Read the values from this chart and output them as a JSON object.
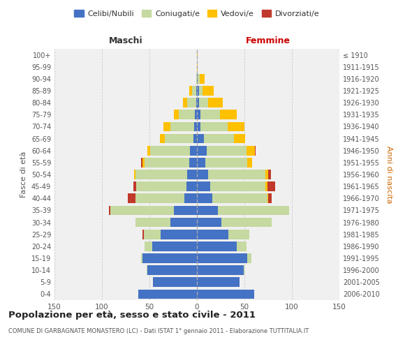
{
  "age_groups": [
    "0-4",
    "5-9",
    "10-14",
    "15-19",
    "20-24",
    "25-29",
    "30-34",
    "35-39",
    "40-44",
    "45-49",
    "50-54",
    "55-59",
    "60-64",
    "65-69",
    "70-74",
    "75-79",
    "80-84",
    "85-89",
    "90-94",
    "95-99",
    "100+"
  ],
  "birth_years": [
    "2006-2010",
    "2001-2005",
    "1996-2000",
    "1991-1995",
    "1986-1990",
    "1981-1985",
    "1976-1980",
    "1971-1975",
    "1966-1970",
    "1961-1965",
    "1956-1960",
    "1951-1955",
    "1946-1950",
    "1941-1945",
    "1936-1940",
    "1931-1935",
    "1926-1930",
    "1921-1925",
    "1916-1920",
    "1911-1915",
    "≤ 1910"
  ],
  "male_celibi": [
    62,
    46,
    52,
    57,
    47,
    38,
    28,
    24,
    13,
    11,
    10,
    8,
    7,
    4,
    3,
    2,
    1,
    1,
    0,
    0,
    0
  ],
  "male_coniugati": [
    0,
    0,
    1,
    2,
    8,
    18,
    37,
    67,
    52,
    53,
    55,
    47,
    42,
    30,
    25,
    17,
    9,
    4,
    1,
    0,
    0
  ],
  "male_vedovi": [
    0,
    0,
    0,
    0,
    0,
    0,
    0,
    0,
    0,
    0,
    1,
    2,
    3,
    5,
    7,
    5,
    5,
    3,
    0,
    0,
    0
  ],
  "male_divorziati": [
    0,
    0,
    0,
    0,
    0,
    1,
    0,
    2,
    8,
    3,
    0,
    2,
    0,
    0,
    0,
    0,
    0,
    0,
    0,
    0,
    0
  ],
  "female_celibi": [
    60,
    45,
    49,
    53,
    42,
    33,
    26,
    22,
    16,
    14,
    12,
    9,
    10,
    7,
    4,
    4,
    2,
    2,
    1,
    0,
    0
  ],
  "female_coniugati": [
    0,
    0,
    1,
    4,
    10,
    22,
    53,
    75,
    58,
    58,
    60,
    44,
    42,
    32,
    28,
    20,
    10,
    4,
    2,
    0,
    0
  ],
  "female_vedovi": [
    0,
    0,
    0,
    0,
    0,
    0,
    0,
    0,
    1,
    2,
    3,
    5,
    9,
    12,
    18,
    18,
    15,
    12,
    5,
    1,
    1
  ],
  "female_divorziati": [
    0,
    0,
    0,
    0,
    0,
    0,
    0,
    0,
    4,
    8,
    3,
    0,
    1,
    0,
    0,
    0,
    0,
    0,
    0,
    0,
    0
  ],
  "color_celibi": "#4472c4",
  "color_coniugati": "#c5d9a0",
  "color_vedovi": "#ffc000",
  "color_divorziati": "#c0392b",
  "title": "Popolazione per età, sesso e stato civile - 2011",
  "subtitle": "COMUNE DI GARBAGNATE MONASTERO (LC) - Dati ISTAT 1° gennaio 2011 - Elaborazione TUTTITALIA.IT",
  "xlabel_left": "Maschi",
  "xlabel_right": "Femmine",
  "ylabel_left": "Fasce di età",
  "ylabel_right": "Anni di nascita",
  "xlim": 150,
  "bg_color": "#ffffff",
  "grid_color": "#cccccc",
  "plot_bg": "#f0f0f0"
}
